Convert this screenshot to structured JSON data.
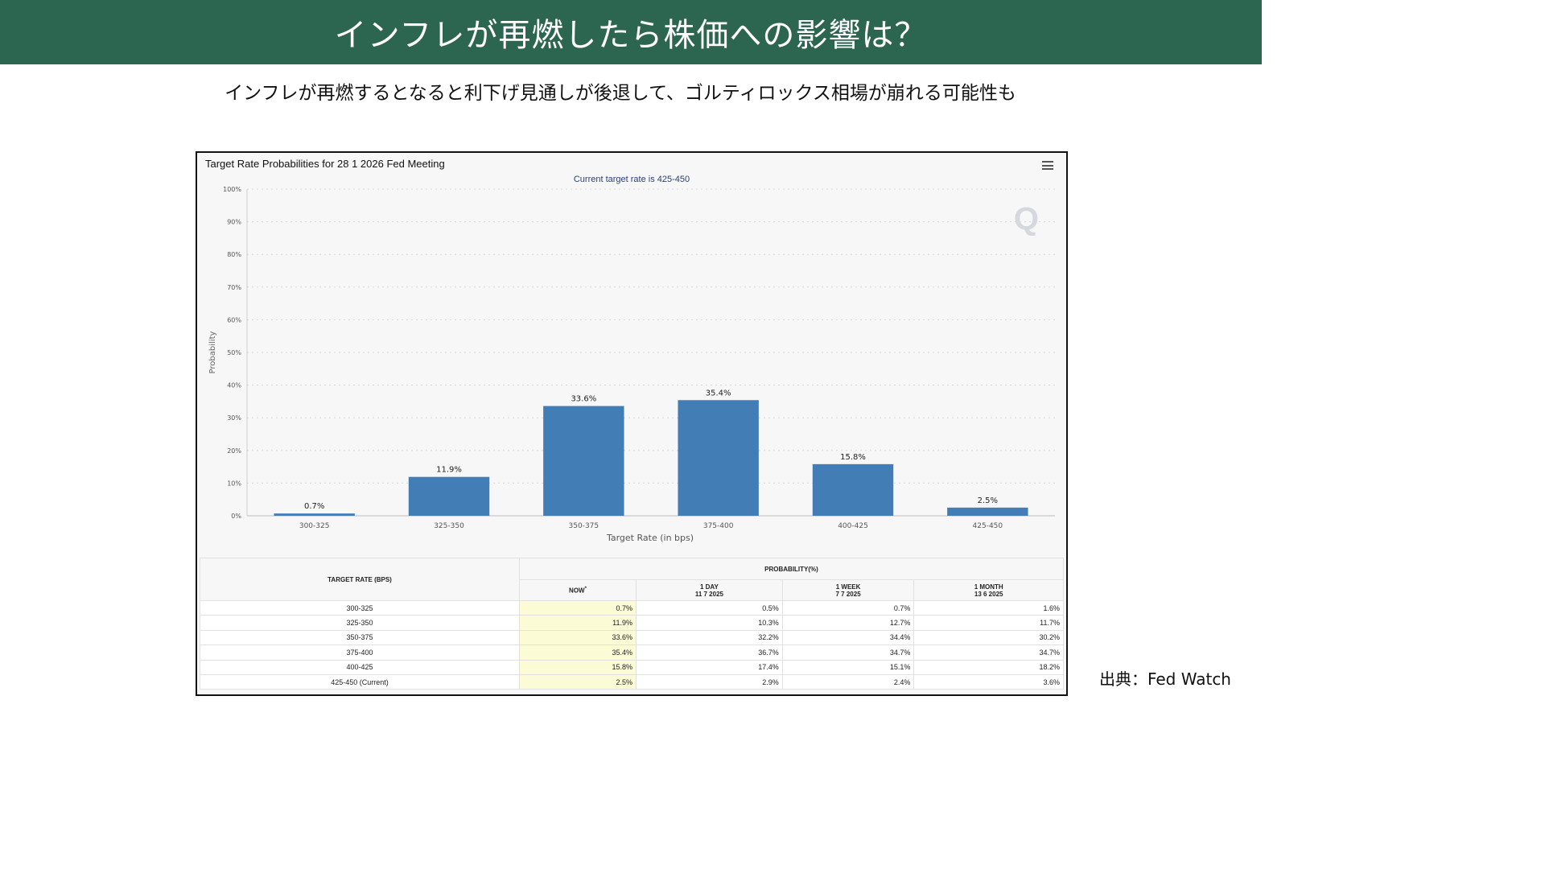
{
  "header": {
    "title": "インフレが再燃したら株価への影響は？",
    "subtitle": "インフレが再燃するとなると利下げ見通しが後退して、ゴルティロックス相場が崩れる可能性も"
  },
  "source": "出典：Fed Watch",
  "colors": {
    "banner": "#2d6650",
    "bar": "#437db5",
    "now_column": "#fbfbd6"
  },
  "chart": {
    "title": "Target Rate Probabilities for 28 1 2026 Fed Meeting",
    "subtitle": "Current target rate is 425-450",
    "menu_icon": "hamburger-icon",
    "watermark": "Q"
  },
  "chart_data": {
    "type": "bar",
    "title": "Target Rate Probabilities for 28 1 2026 Fed Meeting",
    "subtitle": "Current target rate is 425-450",
    "categories": [
      "300-325",
      "325-350",
      "350-375",
      "375-400",
      "400-425",
      "425-450"
    ],
    "values": [
      0.7,
      11.9,
      33.6,
      35.4,
      15.8,
      2.5
    ],
    "value_labels": [
      "0.7%",
      "11.9%",
      "33.6%",
      "35.4%",
      "15.8%",
      "2.5%"
    ],
    "xlabel": "Target Rate (in bps)",
    "ylabel": "Probability",
    "ylim": [
      0,
      100
    ],
    "yticks": [
      "0%",
      "10%",
      "20%",
      "30%",
      "40%",
      "50%",
      "60%",
      "70%",
      "80%",
      "90%",
      "100%"
    ],
    "grid": true,
    "legend": "none"
  },
  "table": {
    "header_rate": "TARGET RATE (BPS)",
    "header_prob": "PROBABILITY(%)",
    "columns": [
      {
        "label": "NOW",
        "sup": "*",
        "date": ""
      },
      {
        "label": "1 DAY",
        "date": "11 7 2025"
      },
      {
        "label": "1 WEEK",
        "date": "7 7 2025"
      },
      {
        "label": "1 MONTH",
        "date": "13 6 2025"
      }
    ],
    "rows": [
      {
        "rate": "300-325",
        "now": "0.7%",
        "day": "0.5%",
        "week": "0.7%",
        "month": "1.6%"
      },
      {
        "rate": "325-350",
        "now": "11.9%",
        "day": "10.3%",
        "week": "12.7%",
        "month": "11.7%"
      },
      {
        "rate": "350-375",
        "now": "33.6%",
        "day": "32.2%",
        "week": "34.4%",
        "month": "30.2%"
      },
      {
        "rate": "375-400",
        "now": "35.4%",
        "day": "36.7%",
        "week": "34.7%",
        "month": "34.7%"
      },
      {
        "rate": "400-425",
        "now": "15.8%",
        "day": "17.4%",
        "week": "15.1%",
        "month": "18.2%"
      },
      {
        "rate": "425-450 (Current)",
        "now": "2.5%",
        "day": "2.9%",
        "week": "2.4%",
        "month": "3.6%"
      }
    ]
  }
}
